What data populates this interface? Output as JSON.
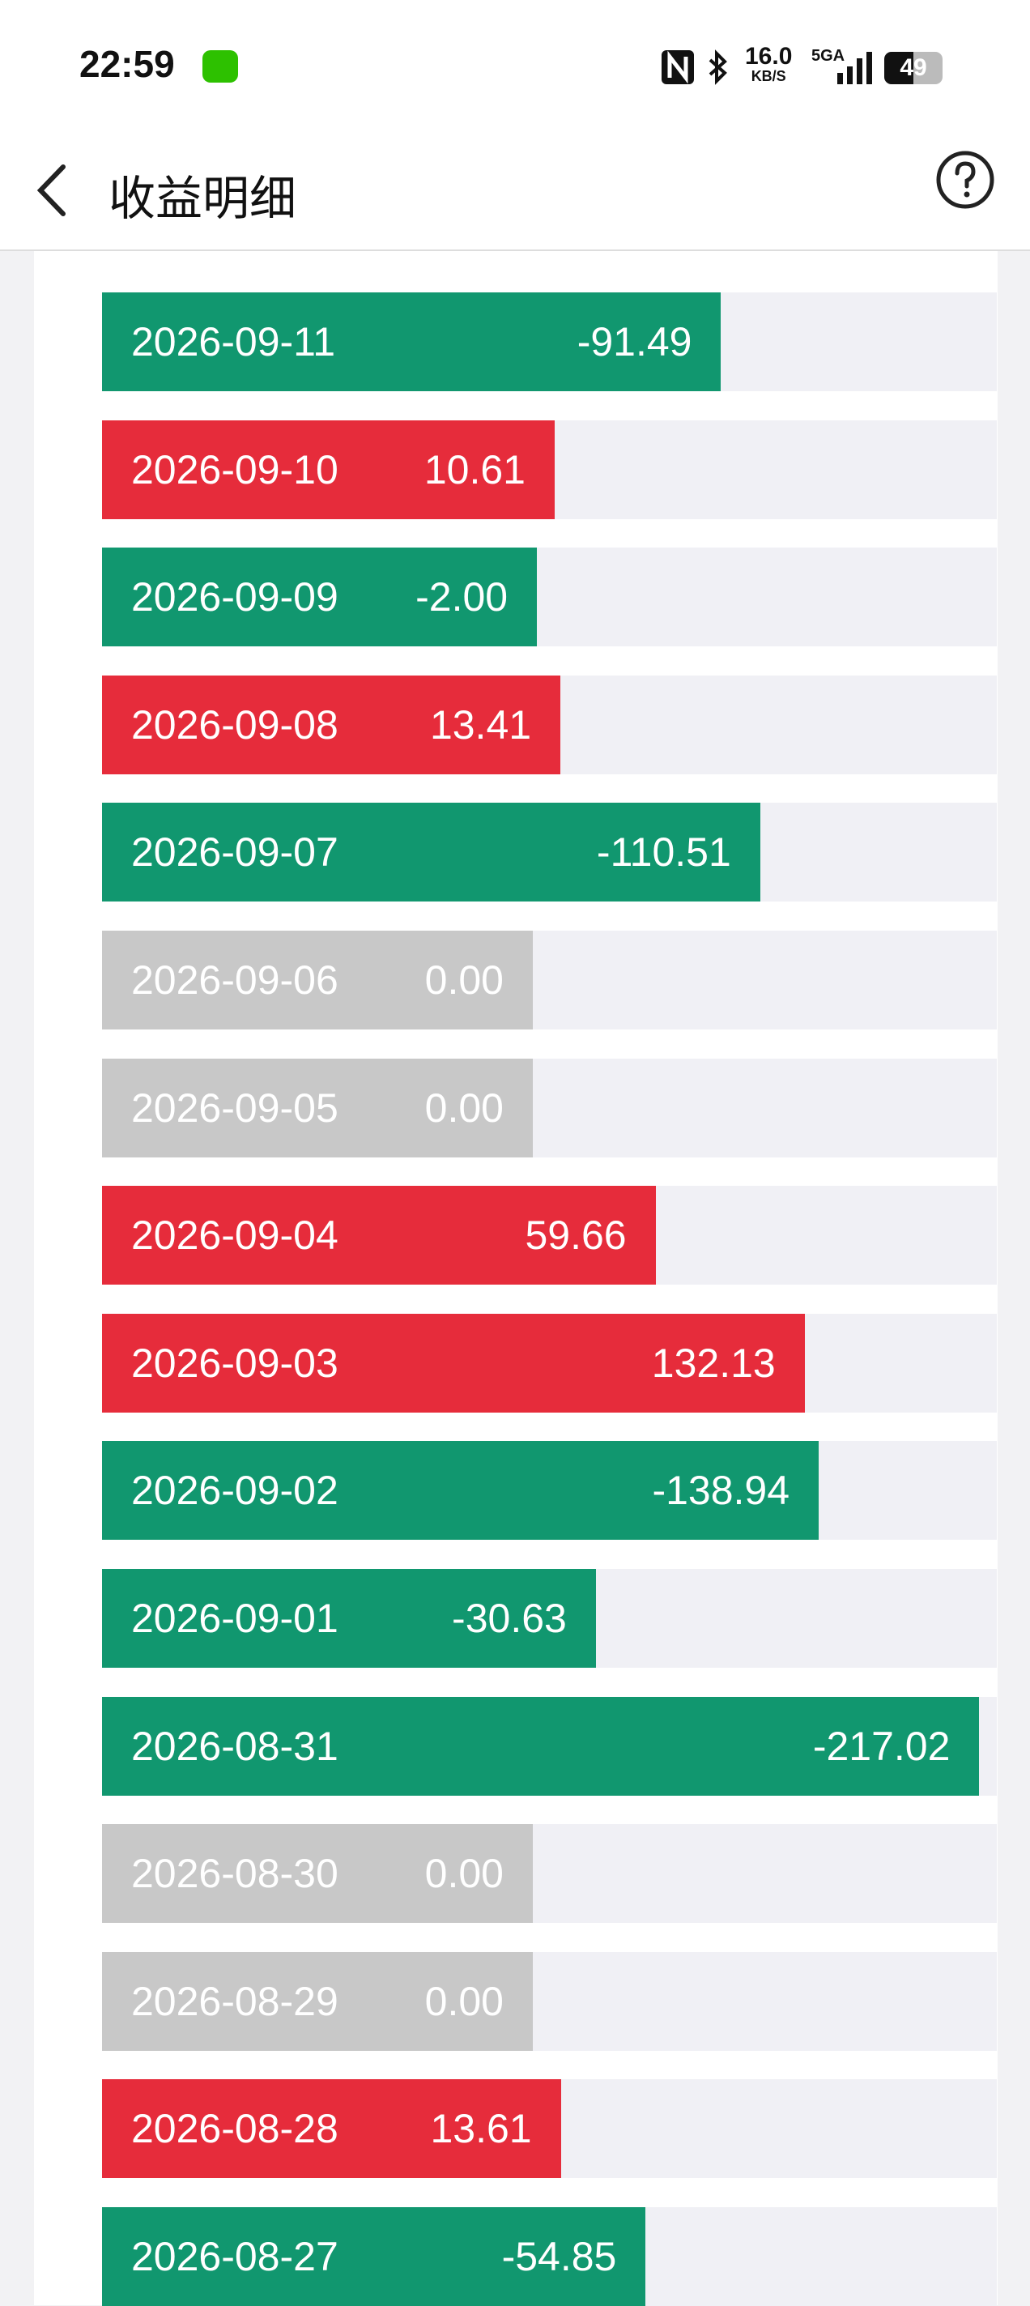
{
  "status_bar": {
    "time": "22:59",
    "speed": "16.0",
    "speed_unit": "KB/S",
    "network": "5GA",
    "battery": "49"
  },
  "header": {
    "title": "收益明细"
  },
  "rows": [
    {
      "date": "2026-09-11",
      "amount": "-91.49"
    },
    {
      "date": "2026-09-10",
      "amount": "10.61"
    },
    {
      "date": "2026-09-09",
      "amount": "-2.00"
    },
    {
      "date": "2026-09-08",
      "amount": "13.41"
    },
    {
      "date": "2026-09-07",
      "amount": "-110.51"
    },
    {
      "date": "2026-09-06",
      "amount": "0.00"
    },
    {
      "date": "2026-09-05",
      "amount": "0.00"
    },
    {
      "date": "2026-09-04",
      "amount": "59.66"
    },
    {
      "date": "2026-09-03",
      "amount": "132.13"
    },
    {
      "date": "2026-09-02",
      "amount": "-138.94"
    },
    {
      "date": "2026-09-01",
      "amount": "-30.63"
    },
    {
      "date": "2026-08-31",
      "amount": "-217.02"
    },
    {
      "date": "2026-08-30",
      "amount": "0.00"
    },
    {
      "date": "2026-08-29",
      "amount": "0.00"
    },
    {
      "date": "2026-08-28",
      "amount": "13.61"
    },
    {
      "date": "2026-08-27",
      "amount": "-54.85"
    }
  ]
}
